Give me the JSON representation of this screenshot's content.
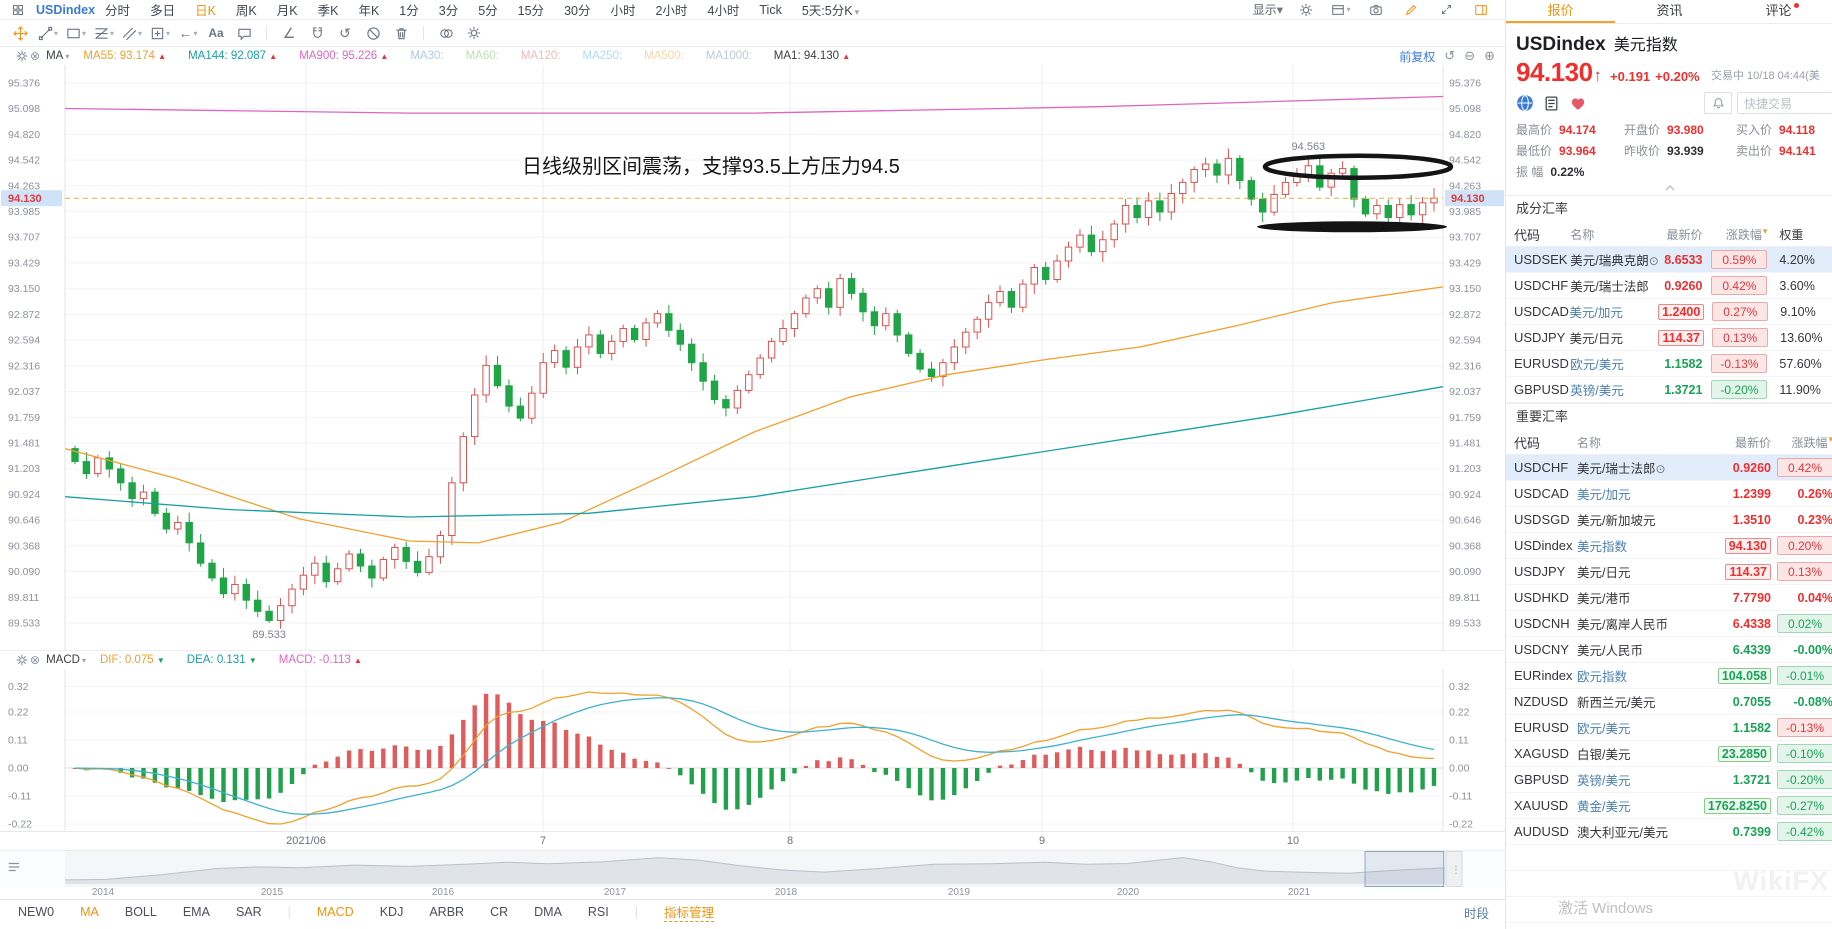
{
  "menubar": {
    "symbol": "USDindex",
    "timeframes": [
      "分时",
      "多日",
      "日K",
      "周K",
      "月K",
      "季K",
      "年K",
      "1分",
      "3分",
      "5分",
      "15分",
      "30分",
      "小时",
      "2小时",
      "4小时",
      "Tick",
      "5天:5分K"
    ],
    "active": "日K",
    "display_label": "显示"
  },
  "draw_tools": [
    "move",
    "trendline",
    "rect",
    "fib",
    "channel",
    "position",
    "arrow-left",
    "text",
    "bubble",
    "|",
    "angle",
    "magnet",
    "rotate",
    "ban",
    "trash",
    "|",
    "compare",
    "gear"
  ],
  "indicator_bar": {
    "name": "MA",
    "adjust_label": "前复权",
    "items": [
      {
        "label": "MA55:",
        "value": "93.174",
        "dir": "up",
        "color": "#f0a02c"
      },
      {
        "label": "MA144:",
        "value": "92.087",
        "dir": "up",
        "color": "#15a0a6"
      },
      {
        "label": "MA900:",
        "value": "95.226",
        "dir": "up",
        "color": "#df64c4"
      },
      {
        "label": "MA30:",
        "value": "",
        "color": "#aecbe8"
      },
      {
        "label": "MA60:",
        "value": "",
        "color": "#bfe0b0"
      },
      {
        "label": "MA120:",
        "value": "",
        "color": "#f2b9b6"
      },
      {
        "label": "MA250:",
        "value": "",
        "color": "#a8dfec"
      },
      {
        "label": "MA500:",
        "value": "",
        "color": "#f3d8a5"
      },
      {
        "label": "MA1000:",
        "value": "",
        "color": "#bcc8d8"
      },
      {
        "label": "MA1:",
        "value": "94.130",
        "dir": "up",
        "color": "#3c4043"
      }
    ]
  },
  "macd_bar": {
    "name": "MACD",
    "items": [
      {
        "label": "DIF: 0.075",
        "dir": "down",
        "color": "#f0a02c"
      },
      {
        "label": "DEA: 0.131",
        "dir": "down",
        "color": "#15a0a6"
      },
      {
        "label": "MACD: -0.113",
        "dir": "up",
        "color": "#df64c4"
      }
    ]
  },
  "chart_data": {
    "type": "candlestick",
    "symbol": "USDindex",
    "period": "日K",
    "y_ticks": [
      "95.376",
      "95.098",
      "94.820",
      "94.542",
      "94.263",
      "93.985",
      "93.707",
      "93.429",
      "93.150",
      "92.872",
      "92.594",
      "92.316",
      "92.037",
      "91.759",
      "91.481",
      "91.203",
      "90.924",
      "90.646",
      "90.368",
      "90.090",
      "89.811",
      "89.533"
    ],
    "x_ticks": [
      {
        "label": "2021/06",
        "x": 306
      },
      {
        "label": "7",
        "x": 543
      },
      {
        "label": "8",
        "x": 790
      },
      {
        "label": "9",
        "x": 1042
      },
      {
        "label": "10",
        "x": 1293
      }
    ],
    "open_first": 91.42,
    "closes": [
      91.28,
      91.15,
      91.32,
      91.2,
      91.05,
      90.88,
      90.95,
      90.72,
      90.55,
      90.62,
      90.4,
      90.18,
      90.02,
      89.85,
      89.95,
      89.78,
      89.66,
      89.56,
      89.72,
      89.9,
      90.05,
      90.18,
      89.98,
      90.12,
      90.28,
      90.15,
      90.02,
      90.22,
      90.35,
      90.2,
      90.08,
      90.25,
      90.48,
      91.05,
      91.55,
      92.0,
      92.32,
      92.1,
      91.88,
      91.75,
      92.02,
      92.35,
      92.48,
      92.3,
      92.52,
      92.65,
      92.45,
      92.58,
      92.72,
      92.6,
      92.78,
      92.88,
      92.7,
      92.55,
      92.35,
      92.15,
      91.95,
      91.86,
      92.05,
      92.22,
      92.4,
      92.58,
      92.72,
      92.88,
      93.05,
      93.15,
      92.95,
      93.26,
      93.1,
      92.9,
      92.75,
      92.88,
      92.65,
      92.45,
      92.28,
      92.2,
      92.35,
      92.52,
      92.68,
      92.82,
      93.0,
      93.12,
      92.95,
      93.2,
      93.38,
      93.25,
      93.45,
      93.6,
      93.73,
      93.55,
      93.68,
      93.85,
      94.05,
      93.92,
      94.1,
      93.98,
      94.18,
      94.3,
      94.44,
      94.5,
      94.38,
      94.56,
      94.32,
      94.12,
      93.98,
      94.17,
      94.3,
      94.38,
      94.48,
      94.25,
      94.4,
      94.45,
      94.12,
      93.96,
      94.05,
      93.92,
      94.06,
      93.95,
      94.08,
      94.13
    ],
    "high_point": {
      "index": 108,
      "price": 94.563,
      "label": "94.563"
    },
    "low_point": {
      "index": 17,
      "price": 89.533,
      "label": "89.533"
    },
    "last_price": "94.130",
    "price_line": 94.13,
    "up_color": "#d9534f",
    "down_color": "#1fa446",
    "price_line_color": "#f2a93b",
    "ma_lines": [
      {
        "name": "MA55",
        "color": "#f0a02c",
        "points": [
          [
            0,
            91.42
          ],
          [
            0.08,
            91.1
          ],
          [
            0.17,
            90.66
          ],
          [
            0.25,
            90.42
          ],
          [
            0.3,
            90.4
          ],
          [
            0.36,
            90.62
          ],
          [
            0.43,
            91.1
          ],
          [
            0.5,
            91.6
          ],
          [
            0.57,
            91.98
          ],
          [
            0.64,
            92.22
          ],
          [
            0.71,
            92.38
          ],
          [
            0.78,
            92.52
          ],
          [
            0.85,
            92.75
          ],
          [
            0.92,
            93.0
          ],
          [
            1,
            93.17
          ]
        ]
      },
      {
        "name": "MA144",
        "color": "#15a0a6",
        "points": [
          [
            0,
            90.9
          ],
          [
            0.12,
            90.76
          ],
          [
            0.25,
            90.68
          ],
          [
            0.38,
            90.72
          ],
          [
            0.5,
            90.9
          ],
          [
            0.62,
            91.18
          ],
          [
            0.75,
            91.48
          ],
          [
            0.88,
            91.78
          ],
          [
            1,
            92.09
          ]
        ]
      },
      {
        "name": "MA900",
        "color": "#df64c4",
        "points": [
          [
            0,
            95.1
          ],
          [
            0.25,
            95.05
          ],
          [
            0.5,
            95.05
          ],
          [
            0.75,
            95.12
          ],
          [
            1,
            95.23
          ]
        ]
      }
    ],
    "macd_ticks": [
      "0.32",
      "0.22",
      "0.11",
      "0.00",
      "-0.11",
      "-0.22"
    ],
    "annotation_text": "日线级别区间震荡，支撑93.5上方压力94.5",
    "navigator": {
      "years": [
        {
          "label": "2014",
          "x": 103
        },
        {
          "label": "2015",
          "x": 272
        },
        {
          "label": "2016",
          "x": 443
        },
        {
          "label": "2017",
          "x": 615
        },
        {
          "label": "2018",
          "x": 786
        },
        {
          "label": "2019",
          "x": 959
        },
        {
          "label": "2020",
          "x": 1128
        },
        {
          "label": "2021",
          "x": 1299
        }
      ],
      "points": [
        [
          0,
          0.08
        ],
        [
          0.03,
          0.1
        ],
        [
          0.07,
          0.28
        ],
        [
          0.11,
          0.52
        ],
        [
          0.14,
          0.58
        ],
        [
          0.17,
          0.55
        ],
        [
          0.21,
          0.65
        ],
        [
          0.25,
          0.6
        ],
        [
          0.29,
          0.68
        ],
        [
          0.32,
          0.76
        ],
        [
          0.35,
          0.7
        ],
        [
          0.39,
          0.78
        ],
        [
          0.43,
          0.93
        ],
        [
          0.46,
          0.84
        ],
        [
          0.49,
          0.62
        ],
        [
          0.52,
          0.46
        ],
        [
          0.55,
          0.38
        ],
        [
          0.59,
          0.52
        ],
        [
          0.63,
          0.68
        ],
        [
          0.67,
          0.7
        ],
        [
          0.71,
          0.76
        ],
        [
          0.74,
          0.68
        ],
        [
          0.77,
          0.71
        ],
        [
          0.81,
          0.94
        ],
        [
          0.83,
          0.78
        ],
        [
          0.85,
          0.54
        ],
        [
          0.87,
          0.42
        ],
        [
          0.9,
          0.37
        ],
        [
          0.93,
          0.34
        ],
        [
          0.96,
          0.44
        ],
        [
          1,
          0.55
        ]
      ],
      "window": [
        0.942,
        0.999
      ]
    }
  },
  "bottom_bar": {
    "items": [
      "NEW0",
      "MA",
      "BOLL",
      "EMA",
      "SAR",
      "|",
      "MACD",
      "KDJ",
      "ARBR",
      "CR",
      "DMA",
      "RSI",
      "|",
      "指标管理"
    ],
    "active": [
      "MA",
      "MACD",
      "指标管理"
    ],
    "right_label": "时段"
  },
  "panel": {
    "tabs": [
      {
        "label": "报价",
        "active": true
      },
      {
        "label": "资讯",
        "active": false
      },
      {
        "label": "评论",
        "active": false,
        "dot": true
      }
    ],
    "symbol": "USDindex",
    "name": "美元指数",
    "price": "94.130",
    "arrow": "↑",
    "change": "+0.191",
    "change_pct": "+0.20%",
    "status": "交易中 10/18 04:44(美",
    "quick_trade": "快捷交易",
    "stats": [
      {
        "label": "最高价",
        "value": "94.174",
        "color": "red"
      },
      {
        "label": "开盘价",
        "value": "93.980",
        "color": "red"
      },
      {
        "label": "买入价",
        "value": "94.118",
        "color": "red"
      },
      {
        "label": "最低价",
        "value": "93.964",
        "color": "red"
      },
      {
        "label": "昨收价",
        "value": "93.939",
        "color": "dark"
      },
      {
        "label": "卖出价",
        "value": "94.141",
        "color": "red"
      },
      {
        "label": "振 幅",
        "value": "0.22%",
        "color": "dark"
      }
    ],
    "sections": [
      {
        "title": "成分汇率",
        "headers": [
          "代码",
          "名称",
          "最新价",
          "涨跌幅",
          "权重"
        ],
        "has_weight": true,
        "rows": [
          {
            "code": "USDSEK",
            "name": "美元/瑞典克朗",
            "name_color": "dark",
            "marker": true,
            "price": "8.6533",
            "price_color": "red",
            "price_flash": null,
            "change": "0.59%",
            "change_style": "red-badge",
            "weight": "4.20%",
            "selected": true
          },
          {
            "code": "USDCHF",
            "name": "美元/瑞士法郎",
            "name_color": "dark",
            "marker": false,
            "price": "0.9260",
            "price_color": "red",
            "price_flash": null,
            "change": "0.42%",
            "change_style": "red-badge",
            "weight": "3.60%",
            "selected": false
          },
          {
            "code": "USDCAD",
            "name": "美元/加元",
            "name_color": "blue",
            "marker": false,
            "price": "1.2400",
            "price_color": "red",
            "price_flash": "red",
            "change": "0.27%",
            "change_style": "red-badge",
            "weight": "9.10%",
            "selected": false
          },
          {
            "code": "USDJPY",
            "name": "美元/日元",
            "name_color": "dark",
            "marker": false,
            "price": "114.37",
            "price_color": "red",
            "price_flash": "red",
            "change": "0.13%",
            "change_style": "red-badge",
            "weight": "13.60%",
            "selected": false
          },
          {
            "code": "EURUSD",
            "name": "欧元/美元",
            "name_color": "blue",
            "marker": false,
            "price": "1.1582",
            "price_color": "green",
            "price_flash": null,
            "change": "-0.13%",
            "change_style": "red-badge",
            "weight": "57.60%",
            "selected": false
          },
          {
            "code": "GBPUSD",
            "name": "英镑/美元",
            "name_color": "blue",
            "marker": false,
            "price": "1.3721",
            "price_color": "green",
            "price_flash": null,
            "change": "-0.20%",
            "change_style": "green-badge",
            "weight": "11.90%",
            "selected": false
          }
        ]
      },
      {
        "title": "重要汇率",
        "headers": [
          "代码",
          "名称",
          "最新价",
          "涨跌幅"
        ],
        "has_weight": false,
        "rows": [
          {
            "code": "USDCHF",
            "name": "美元/瑞士法郎",
            "name_color": "dark",
            "marker": true,
            "price": "0.9260",
            "price_color": "red",
            "price_flash": null,
            "change": "0.42%",
            "change_style": "red-badge",
            "selected": true
          },
          {
            "code": "USDCAD",
            "name": "美元/加元",
            "name_color": "blue",
            "marker": false,
            "price": "1.2399",
            "price_color": "red",
            "price_flash": null,
            "change": "0.26%",
            "change_style": "red-text",
            "selected": false
          },
          {
            "code": "USDSGD",
            "name": "美元/新加坡元",
            "name_color": "dark",
            "marker": false,
            "price": "1.3510",
            "price_color": "red",
            "price_flash": null,
            "change": "0.23%",
            "change_style": "red-text",
            "selected": false
          },
          {
            "code": "USDindex",
            "name": "美元指数",
            "name_color": "blue",
            "marker": false,
            "price": "94.130",
            "price_color": "red",
            "price_flash": "red",
            "change": "0.20%",
            "change_style": "red-badge",
            "selected": false
          },
          {
            "code": "USDJPY",
            "name": "美元/日元",
            "name_color": "dark",
            "marker": false,
            "price": "114.37",
            "price_color": "red",
            "price_flash": "red",
            "change": "0.13%",
            "change_style": "red-badge",
            "selected": false
          },
          {
            "code": "USDHKD",
            "name": "美元/港币",
            "name_color": "dark",
            "marker": false,
            "price": "7.7790",
            "price_color": "red",
            "price_flash": null,
            "change": "0.04%",
            "change_style": "red-text",
            "selected": false
          },
          {
            "code": "USDCNH",
            "name": "美元/离岸人民币",
            "name_color": "dark",
            "marker": false,
            "price": "6.4338",
            "price_color": "red",
            "price_flash": null,
            "change": "0.02%",
            "change_style": "green-badge",
            "selected": false
          },
          {
            "code": "USDCNY",
            "name": "美元/人民币",
            "name_color": "dark",
            "marker": false,
            "price": "6.4339",
            "price_color": "green",
            "price_flash": null,
            "change": "-0.00%",
            "change_style": "green-text",
            "selected": false
          },
          {
            "code": "EURindex",
            "name": "欧元指数",
            "name_color": "blue",
            "marker": false,
            "price": "104.058",
            "price_color": "green",
            "price_flash": "green",
            "change": "-0.01%",
            "change_style": "green-badge",
            "selected": false
          },
          {
            "code": "NZDUSD",
            "name": "新西兰元/美元",
            "name_color": "dark",
            "marker": false,
            "price": "0.7055",
            "price_color": "green",
            "price_flash": null,
            "change": "-0.08%",
            "change_style": "green-text",
            "selected": false
          },
          {
            "code": "EURUSD",
            "name": "欧元/美元",
            "name_color": "blue",
            "marker": false,
            "price": "1.1582",
            "price_color": "green",
            "price_flash": null,
            "change": "-0.13%",
            "change_style": "red-badge",
            "selected": false
          },
          {
            "code": "XAGUSD",
            "name": "白银/美元",
            "name_color": "dark",
            "marker": false,
            "price": "23.2850",
            "price_color": "green",
            "price_flash": "green",
            "change": "-0.10%",
            "change_style": "green-badge",
            "selected": false
          },
          {
            "code": "GBPUSD",
            "name": "英镑/美元",
            "name_color": "blue",
            "marker": false,
            "price": "1.3721",
            "price_color": "green",
            "price_flash": null,
            "change": "-0.20%",
            "change_style": "green-badge",
            "selected": false
          },
          {
            "code": "XAUUSD",
            "name": "黄金/美元",
            "name_color": "blue",
            "marker": false,
            "price": "1762.8250",
            "price_color": "green",
            "price_flash": "green",
            "change": "-0.27%",
            "change_style": "green-badge",
            "selected": false
          },
          {
            "code": "AUDUSD",
            "name": "澳大利亚元/美元",
            "name_color": "dark",
            "marker": false,
            "price": "0.7399",
            "price_color": "green",
            "price_flash": null,
            "change": "-0.42%",
            "change_style": "green-badge",
            "selected": false
          }
        ]
      }
    ]
  },
  "watermark": {
    "line1": "激活 Windows",
    "logo": "WikiFX"
  }
}
